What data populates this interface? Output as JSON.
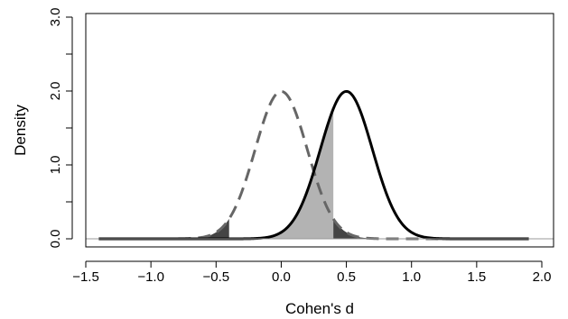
{
  "chart_data": {
    "type": "line",
    "title": "",
    "xlabel": "Cohen's d",
    "ylabel": "Density",
    "xlim": [
      -1.5,
      2.0
    ],
    "ylim": [
      0.0,
      3.0
    ],
    "x_ticks": [
      -1.5,
      -1.0,
      -0.5,
      0.0,
      0.5,
      1.0,
      1.5,
      2.0
    ],
    "x_tick_labels": [
      "−1.5",
      "−1.0",
      "−0.5",
      "0.0",
      "0.5",
      "1.0",
      "1.5",
      "2.0"
    ],
    "y_ticks": [
      0.0,
      0.5,
      1.0,
      1.5,
      2.0,
      2.5,
      3.0
    ],
    "y_tick_labels": [
      "0.0",
      "1.0",
      "2.0",
      "3.0"
    ],
    "y_tick_labels_at": [
      0.0,
      1.0,
      2.0,
      3.0
    ],
    "grid": false,
    "legend": "none",
    "series": [
      {
        "style": "dashed",
        "color": "#666666",
        "distribution": "normal",
        "mean": 0.0,
        "sd": 0.2,
        "x_range": [
          -1.4,
          1.9
        ],
        "shaded_tails": {
          "lower_than": -0.4,
          "greater_than": 0.4,
          "color": "#444444"
        }
      },
      {
        "style": "solid",
        "color": "#000000",
        "distribution": "normal",
        "mean": 0.5,
        "sd": 0.2,
        "x_range": [
          -1.4,
          1.9
        ],
        "shaded_region": {
          "from": -0.4,
          "to": 0.4,
          "color": "#b3b3b3"
        }
      }
    ],
    "reference_line": {
      "y": 0.0,
      "color": "#999999"
    }
  }
}
